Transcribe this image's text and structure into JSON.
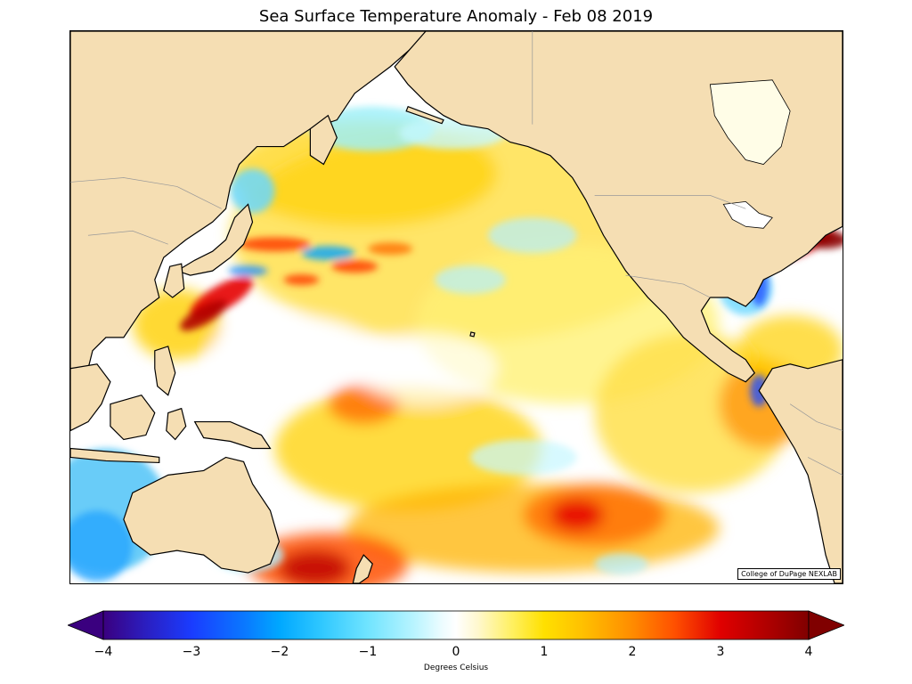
{
  "title": "Sea Surface Temperature Anomaly - Feb 08 2019",
  "credit": "College of DuPage NEXLAB",
  "colorbar": {
    "label": "Degrees Celsius",
    "ticks": [
      "−4",
      "−3",
      "−2",
      "−1",
      "0",
      "1",
      "2",
      "3",
      "4"
    ],
    "min": -4,
    "max": 4,
    "extend": "both"
  },
  "colors": {
    "land": "#f5deb3",
    "ocean_neutral": "#ffffff",
    "coast": "#000000",
    "border": "#999999"
  }
}
